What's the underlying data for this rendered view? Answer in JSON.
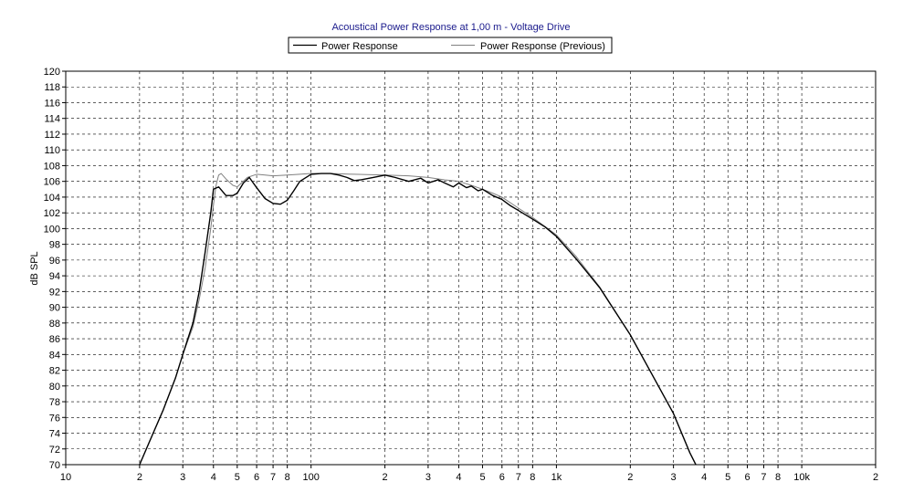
{
  "chart_data": {
    "type": "line",
    "title": "Acoustical Power Response at 1,00 m - Voltage Drive",
    "xlabel": "",
    "ylabel": "dB SPL",
    "x_scale": "log",
    "xlim": [
      10,
      20000
    ],
    "ylim": [
      70,
      120
    ],
    "grid": true,
    "legend_position": "top-center",
    "y_ticks": [
      70,
      72,
      74,
      76,
      78,
      80,
      82,
      84,
      86,
      88,
      90,
      92,
      94,
      96,
      98,
      100,
      102,
      104,
      106,
      108,
      110,
      112,
      114,
      116,
      118,
      120
    ],
    "y_tick_labels": [
      "70",
      "72",
      "74",
      "76",
      "78",
      "80",
      "82",
      "84",
      "86",
      "88",
      "90",
      "92",
      "94",
      "96",
      "98",
      "100",
      "102",
      "104",
      "106",
      "108",
      "110",
      "112",
      "114",
      "116",
      "118",
      "120"
    ],
    "x_ticks": [
      10,
      20,
      30,
      40,
      50,
      60,
      70,
      80,
      100,
      200,
      300,
      400,
      500,
      600,
      700,
      800,
      1000,
      2000,
      3000,
      4000,
      5000,
      6000,
      7000,
      8000,
      10000,
      20000
    ],
    "x_tick_labels": [
      "10",
      "2",
      "3",
      "4",
      "5",
      "6",
      "7",
      "8",
      "100",
      "2",
      "3",
      "4",
      "5",
      "6",
      "7",
      "8",
      "1k",
      "2",
      "3",
      "4",
      "5",
      "6",
      "7",
      "8",
      "10k",
      "2"
    ],
    "series": [
      {
        "name": "Power Response",
        "color": "#000000",
        "x": [
          20,
          22,
          25,
          28,
          30,
          33,
          35,
          37,
          39,
          40,
          42,
          45,
          48,
          50,
          53,
          56,
          60,
          65,
          70,
          75,
          80,
          85,
          90,
          100,
          110,
          120,
          130,
          140,
          150,
          160,
          180,
          200,
          220,
          250,
          280,
          300,
          330,
          350,
          380,
          400,
          430,
          450,
          480,
          500,
          550,
          600,
          650,
          700,
          800,
          900,
          1000,
          1200,
          1500,
          2000,
          2500,
          3000,
          3500,
          3700
        ],
        "y": [
          70,
          73,
          77,
          81,
          84,
          88,
          92,
          97,
          102,
          105,
          105.3,
          104.2,
          104.2,
          104.5,
          105.8,
          106.5,
          105.2,
          103.8,
          103.2,
          103.1,
          103.6,
          104.8,
          106,
          106.9,
          107,
          107,
          106.8,
          106.5,
          106.1,
          106.2,
          106.5,
          106.8,
          106.5,
          106,
          106.4,
          105.8,
          106.2,
          105.8,
          105.3,
          105.8,
          105.2,
          105.4,
          104.8,
          105,
          104.2,
          103.7,
          102.9,
          102.3,
          101.2,
          100.2,
          99,
          96.2,
          92.5,
          86.5,
          81,
          76.5,
          71.5,
          70
        ]
      },
      {
        "name": "Power Response (Previous)",
        "color": "#808080",
        "x": [
          20,
          22,
          25,
          28,
          30,
          33,
          35,
          37,
          39,
          40,
          41,
          42,
          43,
          45,
          48,
          50,
          55,
          60,
          65,
          70,
          80,
          90,
          100,
          120,
          150,
          200,
          250,
          300,
          350,
          400,
          450,
          500,
          550,
          600,
          700,
          800,
          1000,
          1200,
          1500,
          2000,
          2500,
          3000,
          3500,
          3700
        ],
        "y": [
          70,
          73,
          77,
          81,
          84,
          87.5,
          91,
          95,
          100,
          103,
          105.5,
          106.8,
          107,
          106.3,
          105.5,
          105.3,
          106.5,
          106.9,
          106.8,
          106.7,
          106.8,
          106.9,
          107,
          107,
          106.9,
          106.8,
          106.7,
          106.5,
          106.2,
          106,
          105.5,
          105,
          104.5,
          104,
          102.6,
          101.4,
          99.2,
          96.5,
          92.6,
          86.5,
          81,
          76.5,
          71.5,
          70
        ]
      }
    ]
  }
}
